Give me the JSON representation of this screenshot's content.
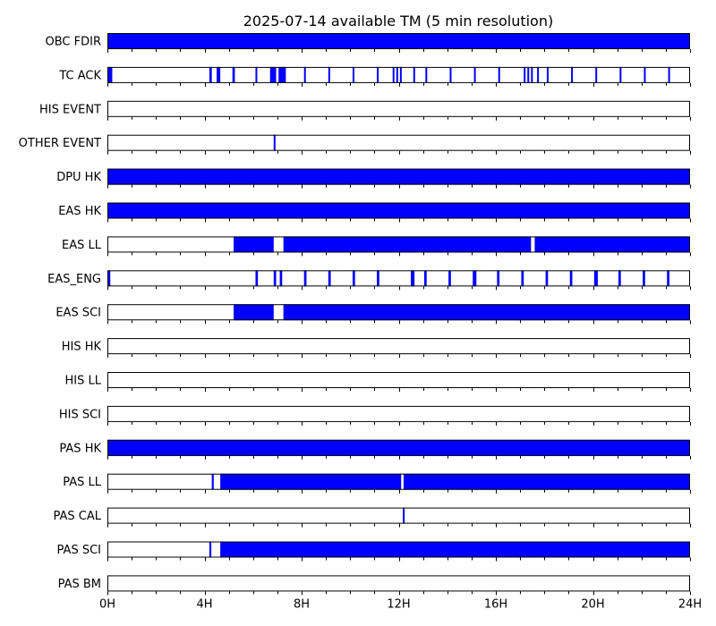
{
  "chart_data": {
    "type": "timeline",
    "title": "2025-07-14 available TM (5 min resolution)",
    "colors": {
      "available": "#0000ff",
      "frame": "#000000",
      "background": "#ffffff"
    },
    "xlim": [
      0,
      24
    ],
    "x_unit": "hours",
    "major_ticks": [
      0,
      4,
      8,
      12,
      16,
      20,
      24
    ],
    "tick_labels": [
      "0H",
      "4H",
      "8H",
      "12H",
      "16H",
      "20H",
      "24H"
    ],
    "minor_tick_step_hours": 1,
    "rows": [
      {
        "name": "OBC FDIR",
        "intervals": [
          [
            0,
            24
          ]
        ]
      },
      {
        "name": "TC ACK",
        "intervals": [
          [
            0.02,
            0.2
          ],
          [
            4.2,
            4.3
          ],
          [
            4.5,
            4.65
          ],
          [
            5.15,
            5.25
          ],
          [
            6.1,
            6.15
          ],
          [
            6.7,
            6.95
          ],
          [
            7.05,
            7.35
          ],
          [
            8.1,
            8.15
          ],
          [
            9.1,
            9.15
          ],
          [
            10.1,
            10.15
          ],
          [
            11.1,
            11.15
          ],
          [
            11.75,
            11.82
          ],
          [
            11.9,
            11.97
          ],
          [
            12.05,
            12.12
          ],
          [
            12.6,
            12.65
          ],
          [
            13.1,
            13.15
          ],
          [
            14.1,
            14.15
          ],
          [
            15.1,
            15.15
          ],
          [
            16.1,
            16.15
          ],
          [
            17.15,
            17.2
          ],
          [
            17.3,
            17.37
          ],
          [
            17.45,
            17.5
          ],
          [
            17.7,
            17.75
          ],
          [
            18.1,
            18.15
          ],
          [
            19.1,
            19.15
          ],
          [
            20.1,
            20.15
          ],
          [
            21.1,
            21.15
          ],
          [
            22.1,
            22.15
          ],
          [
            23.1,
            23.15
          ]
        ]
      },
      {
        "name": "HIS EVENT",
        "intervals": []
      },
      {
        "name": "OTHER EVENT",
        "intervals": [
          [
            6.85,
            6.9
          ]
        ]
      },
      {
        "name": "DPU HK",
        "intervals": [
          [
            0,
            24
          ]
        ]
      },
      {
        "name": "EAS HK",
        "intervals": [
          [
            0,
            24
          ]
        ]
      },
      {
        "name": "EAS LL",
        "intervals": [
          [
            5.2,
            6.85
          ],
          [
            7.25,
            17.45
          ],
          [
            17.6,
            24
          ]
        ]
      },
      {
        "name": "EAS_ENG",
        "intervals": [
          [
            0.02,
            0.12
          ],
          [
            6.1,
            6.2
          ],
          [
            6.85,
            6.95
          ],
          [
            7.1,
            7.2
          ],
          [
            8.1,
            8.2
          ],
          [
            9.1,
            9.2
          ],
          [
            10.1,
            10.2
          ],
          [
            11.1,
            11.2
          ],
          [
            12.5,
            12.65
          ],
          [
            13.05,
            13.15
          ],
          [
            14.05,
            14.15
          ],
          [
            15.05,
            15.2
          ],
          [
            16.05,
            16.15
          ],
          [
            17.05,
            17.15
          ],
          [
            18.05,
            18.15
          ],
          [
            19.05,
            19.15
          ],
          [
            20.05,
            20.2
          ],
          [
            21.05,
            21.15
          ],
          [
            22.05,
            22.15
          ],
          [
            23.05,
            23.15
          ]
        ]
      },
      {
        "name": "EAS SCI",
        "intervals": [
          [
            5.2,
            6.85
          ],
          [
            7.25,
            24
          ]
        ]
      },
      {
        "name": "HIS HK",
        "intervals": []
      },
      {
        "name": "HIS LL",
        "intervals": []
      },
      {
        "name": "HIS SCI",
        "intervals": []
      },
      {
        "name": "PAS HK",
        "intervals": [
          [
            0,
            24
          ]
        ]
      },
      {
        "name": "PAS LL",
        "intervals": [
          [
            4.3,
            4.38
          ],
          [
            4.65,
            12.1
          ],
          [
            12.2,
            24
          ]
        ]
      },
      {
        "name": "PAS CAL",
        "intervals": [
          [
            12.17,
            12.22
          ]
        ]
      },
      {
        "name": "PAS SCI",
        "intervals": [
          [
            4.2,
            4.28
          ],
          [
            4.65,
            24
          ]
        ]
      },
      {
        "name": "PAS BM",
        "intervals": []
      }
    ]
  }
}
